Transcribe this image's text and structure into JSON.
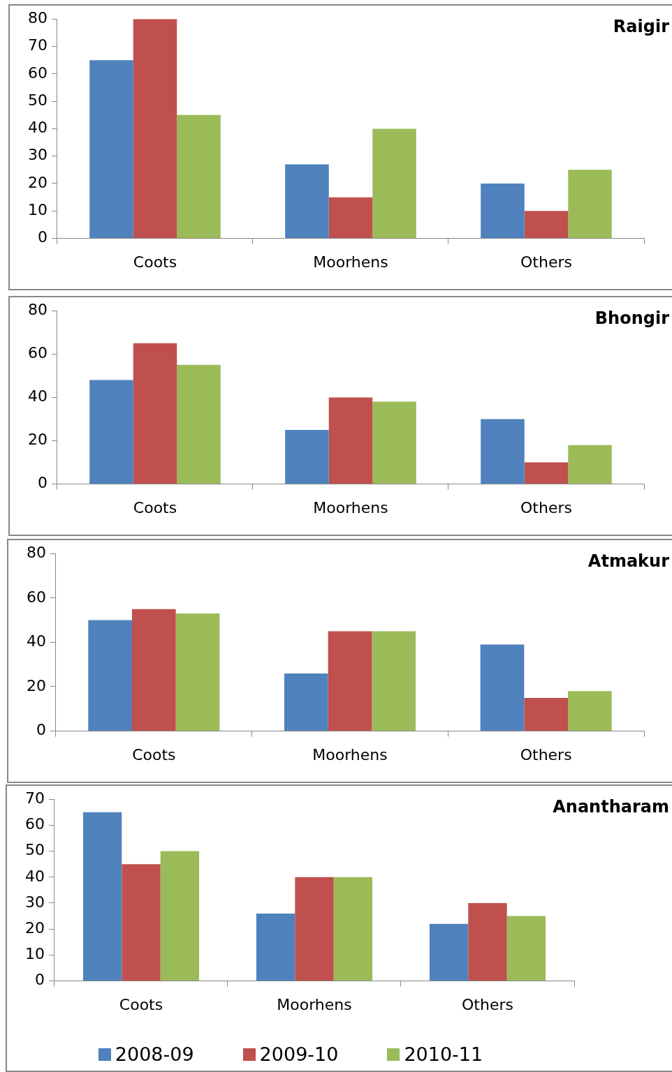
{
  "chart_data": [
    {
      "type": "bar",
      "title": "Raigir",
      "categories": [
        "Coots",
        "Moorhens",
        "Others"
      ],
      "series": [
        {
          "color": "#4f81bd",
          "values": [
            65,
            27,
            20
          ]
        },
        {
          "color": "#c0504d",
          "values": [
            80,
            15,
            10
          ]
        },
        {
          "color": "#9bbb59",
          "values": [
            45,
            40,
            25
          ]
        }
      ],
      "ylim": [
        0,
        80
      ],
      "yticks": [
        0,
        10,
        20,
        30,
        40,
        50,
        60,
        70,
        80
      ],
      "grid": false,
      "legend": false
    },
    {
      "type": "bar",
      "title": "Bhongir",
      "categories": [
        "Coots",
        "Moorhens",
        "Others"
      ],
      "series": [
        {
          "color": "#4f81bd",
          "values": [
            48,
            25,
            30
          ]
        },
        {
          "color": "#c0504d",
          "values": [
            65,
            40,
            10
          ]
        },
        {
          "color": "#9bbb59",
          "values": [
            55,
            38,
            18
          ]
        }
      ],
      "ylim": [
        0,
        80
      ],
      "yticks": [
        0,
        20,
        40,
        60,
        80
      ],
      "grid": false,
      "legend": false
    },
    {
      "type": "bar",
      "title": "Atmakur",
      "categories": [
        "Coots",
        "Moorhens",
        "Others"
      ],
      "series": [
        {
          "color": "#4f81bd",
          "values": [
            50,
            26,
            39
          ]
        },
        {
          "color": "#c0504d",
          "values": [
            55,
            45,
            15
          ]
        },
        {
          "color": "#9bbb59",
          "values": [
            53,
            45,
            18
          ]
        }
      ],
      "ylim": [
        0,
        80
      ],
      "yticks": [
        0,
        20,
        40,
        60,
        80
      ],
      "grid": false,
      "legend": false
    },
    {
      "type": "bar",
      "title": "Anantharam",
      "categories": [
        "Coots",
        "Moorhens",
        "Others"
      ],
      "series": [
        {
          "name": "2008-09",
          "color": "#4f81bd",
          "values": [
            65,
            26,
            22
          ]
        },
        {
          "name": "2009-10",
          "color": "#c0504d",
          "values": [
            45,
            40,
            30
          ]
        },
        {
          "name": "2010-11",
          "color": "#9bbb59",
          "values": [
            50,
            40,
            25
          ]
        }
      ],
      "ylim": [
        0,
        70
      ],
      "yticks": [
        0,
        10,
        20,
        30,
        40,
        50,
        60,
        70
      ],
      "grid": false,
      "legend": "bottom"
    }
  ]
}
